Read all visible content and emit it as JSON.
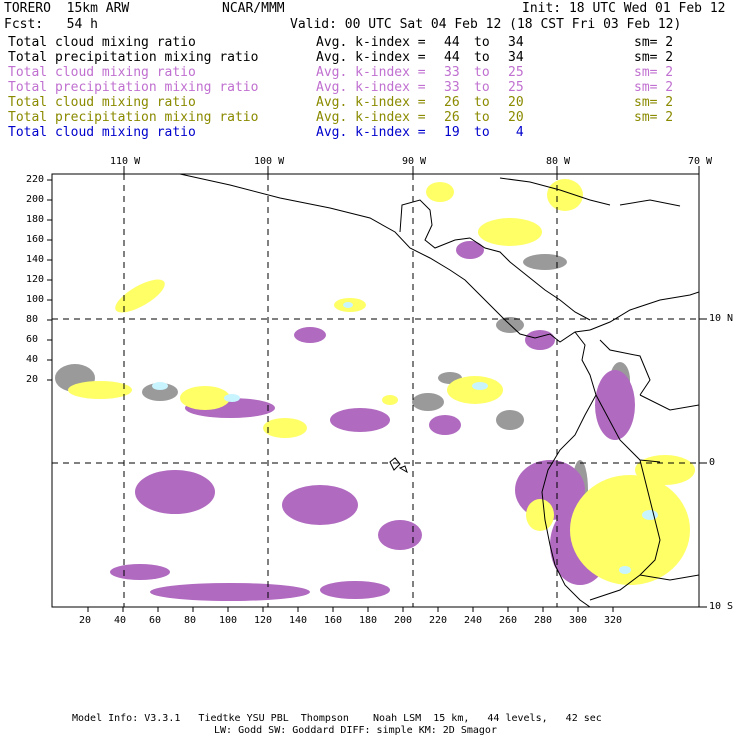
{
  "header": {
    "model_name": "TORERO  15km ARW",
    "org": "NCAR/MMM",
    "init": "Init: 18 UTC Wed 01 Feb 12",
    "fcst": "Fcst:   54 h",
    "valid": "Valid: 00 UTC Sat 04 Feb 12 (18 CST Fri 03 Feb 12)"
  },
  "legend": [
    {
      "field": "Total cloud mixing ratio",
      "avg": "Avg. k-index = ",
      "from": "44",
      "to_word": "to",
      "to": "34",
      "sm": "sm= 2",
      "color": "#000000"
    },
    {
      "field": "Total precipitation mixing ratio",
      "avg": "Avg. k-index = ",
      "from": "44",
      "to_word": "to",
      "to": "34",
      "sm": "sm= 2",
      "color": "#000000"
    },
    {
      "field": "Total cloud mixing ratio",
      "avg": "Avg. k-index = ",
      "from": "33",
      "to_word": "to",
      "to": "25",
      "sm": "sm= 2",
      "color": "#c070d0"
    },
    {
      "field": "Total precipitation mixing ratio",
      "avg": "Avg. k-index = ",
      "from": "33",
      "to_word": "to",
      "to": "25",
      "sm": "sm= 2",
      "color": "#c070d0"
    },
    {
      "field": "Total cloud mixing ratio",
      "avg": "Avg. k-index = ",
      "from": "26",
      "to_word": "to",
      "to": "20",
      "sm": "sm= 2",
      "color": "#8a8a00"
    },
    {
      "field": "Total precipitation mixing ratio",
      "avg": "Avg. k-index = ",
      "from": "26",
      "to_word": "to",
      "to": "20",
      "sm": "sm= 2",
      "color": "#8a8a00"
    },
    {
      "field": "Total cloud mixing ratio",
      "avg": "Avg. k-index = ",
      "from": "19",
      "to_word": "to",
      "to": " 4",
      "sm": "",
      "color": "#0000cc"
    }
  ],
  "map": {
    "lon_labels": [
      "110 W",
      "100 W",
      "90 W",
      "80 W",
      "70 W"
    ],
    "lat_labels": [
      "10 N",
      "0",
      "10 S"
    ],
    "y_ticks": [
      "220",
      "200",
      "180",
      "160",
      "140",
      "120",
      "100",
      "80",
      "60",
      "40",
      "20"
    ],
    "x_ticks": [
      "20",
      "40",
      "60",
      "80",
      "100",
      "120",
      "140",
      "160",
      "180",
      "200",
      "220",
      "240",
      "260",
      "280",
      "300",
      "320"
    ]
  },
  "footer": {
    "line1": "Model Info: V3.3.1   Tiedtke YSU PBL  Thompson    Noah LSM  15 km,   44 levels,   42 sec",
    "line2": "LW: Godd SW: Goddard DIFF: simple KM: 2D Smagor"
  },
  "colors": {
    "gray": "#9a9a9a",
    "purple": "#b06ac0",
    "yellow": "#ffff66",
    "cyan": "#c8f4ff"
  }
}
